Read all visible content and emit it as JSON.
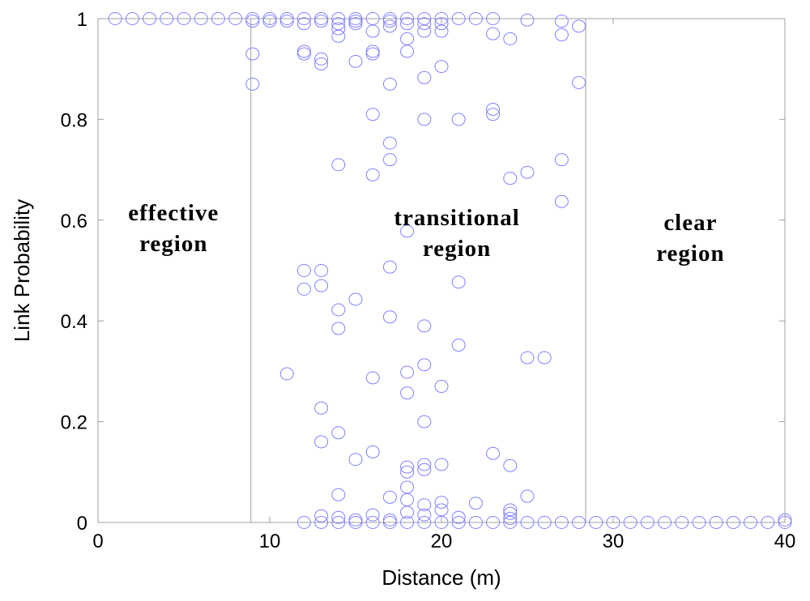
{
  "chart_data": {
    "type": "scatter",
    "xlabel": "Distance (m)",
    "ylabel": "Link Probability",
    "xlim": [
      0,
      40
    ],
    "ylim": [
      0,
      1
    ],
    "xticks": [
      "0",
      "10",
      "20",
      "30",
      "40"
    ],
    "yticks": [
      "0",
      "0.2",
      "0.4",
      "0.6",
      "0.8",
      "1"
    ],
    "region_boundaries": [
      8.9,
      28.4
    ],
    "regions": [
      {
        "lines": [
          "effective",
          "region"
        ],
        "x": 4.4,
        "y": 0.6
      },
      {
        "lines": [
          "transitional",
          "region"
        ],
        "x": 20.9,
        "y": 0.59
      },
      {
        "lines": [
          "clear",
          "region"
        ],
        "x": 34.5,
        "y": 0.58
      }
    ],
    "colors": {
      "marker": "#8080ff",
      "axes": "#a0a0a0",
      "text": "#000000"
    },
    "series": [
      {
        "values": [
          [
            1.0,
            1.0
          ],
          [
            2.0,
            1.0
          ],
          [
            3.0,
            1.0
          ],
          [
            4.0,
            1.0
          ],
          [
            5.0,
            1.0
          ],
          [
            6.0,
            1.0
          ],
          [
            7.0,
            1.0
          ],
          [
            8.0,
            1.0
          ],
          [
            9.0,
            1.0
          ],
          [
            9.0,
            0.995
          ],
          [
            9.0,
            0.93
          ],
          [
            9.0,
            0.87
          ],
          [
            10.0,
            1.0
          ],
          [
            10.0,
            0.995
          ],
          [
            11.0,
            1.0
          ],
          [
            11.0,
            0.995
          ],
          [
            11.0,
            0.295
          ],
          [
            12.0,
            1.0
          ],
          [
            12.0,
            0.99
          ],
          [
            12.0,
            0.935
          ],
          [
            12.0,
            0.93
          ],
          [
            12.0,
            0.5
          ],
          [
            12.0,
            0.463
          ],
          [
            12.0,
            0.0
          ],
          [
            13.0,
            1.0
          ],
          [
            13.0,
            0.995
          ],
          [
            13.0,
            0.92
          ],
          [
            13.0,
            0.91
          ],
          [
            13.0,
            0.5
          ],
          [
            13.0,
            0.47
          ],
          [
            13.0,
            0.227
          ],
          [
            13.0,
            0.16
          ],
          [
            13.0,
            0.013
          ],
          [
            13.0,
            0.0
          ],
          [
            14.0,
            1.0
          ],
          [
            14.0,
            0.99
          ],
          [
            14.0,
            0.98
          ],
          [
            14.0,
            0.965
          ],
          [
            14.0,
            0.71
          ],
          [
            14.0,
            0.422
          ],
          [
            14.0,
            0.385
          ],
          [
            14.0,
            0.178
          ],
          [
            14.0,
            0.055
          ],
          [
            14.0,
            0.01
          ],
          [
            14.0,
            0.0
          ],
          [
            15.0,
            1.0
          ],
          [
            15.0,
            0.995
          ],
          [
            15.0,
            0.99
          ],
          [
            15.0,
            0.915
          ],
          [
            15.0,
            0.443
          ],
          [
            15.0,
            0.125
          ],
          [
            15.0,
            0.005
          ],
          [
            15.0,
            0.0
          ],
          [
            16.0,
            1.0
          ],
          [
            16.0,
            0.975
          ],
          [
            16.0,
            0.935
          ],
          [
            16.0,
            0.93
          ],
          [
            16.0,
            0.81
          ],
          [
            16.0,
            0.69
          ],
          [
            16.0,
            0.287
          ],
          [
            16.0,
            0.14
          ],
          [
            16.0,
            0.015
          ],
          [
            16.0,
            0.0
          ],
          [
            17.0,
            1.0
          ],
          [
            17.0,
            0.995
          ],
          [
            17.0,
            0.985
          ],
          [
            17.0,
            0.87
          ],
          [
            17.0,
            0.753
          ],
          [
            17.0,
            0.72
          ],
          [
            17.0,
            0.507
          ],
          [
            17.0,
            0.408
          ],
          [
            17.0,
            0.05
          ],
          [
            17.0,
            0.005
          ],
          [
            17.0,
            0.0
          ],
          [
            18.0,
            1.0
          ],
          [
            18.0,
            0.99
          ],
          [
            18.0,
            0.96
          ],
          [
            18.0,
            0.935
          ],
          [
            18.0,
            0.578
          ],
          [
            18.0,
            0.298
          ],
          [
            18.0,
            0.257
          ],
          [
            18.0,
            0.11
          ],
          [
            18.0,
            0.1
          ],
          [
            18.0,
            0.07
          ],
          [
            18.0,
            0.045
          ],
          [
            18.0,
            0.02
          ],
          [
            18.0,
            0.0
          ],
          [
            19.0,
            1.0
          ],
          [
            19.0,
            0.99
          ],
          [
            19.0,
            0.975
          ],
          [
            19.0,
            0.883
          ],
          [
            19.0,
            0.8
          ],
          [
            19.0,
            0.39
          ],
          [
            19.0,
            0.313
          ],
          [
            19.0,
            0.2
          ],
          [
            19.0,
            0.115
          ],
          [
            19.0,
            0.105
          ],
          [
            19.0,
            0.035
          ],
          [
            19.0,
            0.015
          ],
          [
            19.0,
            0.0
          ],
          [
            20.0,
            1.0
          ],
          [
            20.0,
            0.99
          ],
          [
            20.0,
            0.975
          ],
          [
            20.0,
            0.905
          ],
          [
            20.0,
            0.27
          ],
          [
            20.0,
            0.115
          ],
          [
            20.0,
            0.04
          ],
          [
            20.0,
            0.025
          ],
          [
            20.0,
            0.0
          ],
          [
            21.0,
            1.0
          ],
          [
            21.0,
            0.8
          ],
          [
            21.0,
            0.477
          ],
          [
            21.0,
            0.352
          ],
          [
            21.0,
            0.01
          ],
          [
            21.0,
            0.0
          ],
          [
            22.0,
            1.0
          ],
          [
            22.0,
            0.038
          ],
          [
            22.0,
            0.0
          ],
          [
            23.0,
            1.0
          ],
          [
            23.0,
            0.97
          ],
          [
            23.0,
            0.82
          ],
          [
            23.0,
            0.81
          ],
          [
            23.0,
            0.137
          ],
          [
            23.0,
            0.0
          ],
          [
            24.0,
            0.96
          ],
          [
            24.0,
            0.683
          ],
          [
            24.0,
            0.113
          ],
          [
            24.0,
            0.025
          ],
          [
            24.0,
            0.018
          ],
          [
            24.0,
            0.008
          ],
          [
            24.0,
            0.0
          ],
          [
            25.0,
            0.997
          ],
          [
            25.0,
            0.695
          ],
          [
            25.0,
            0.327
          ],
          [
            25.0,
            0.052
          ],
          [
            25.0,
            0.0
          ],
          [
            26.0,
            0.327
          ],
          [
            26.0,
            0.0
          ],
          [
            27.0,
            0.995
          ],
          [
            27.0,
            0.968
          ],
          [
            27.0,
            0.72
          ],
          [
            27.0,
            0.637
          ],
          [
            27.0,
            0.0
          ],
          [
            28.0,
            0.985
          ],
          [
            28.0,
            0.873
          ],
          [
            28.0,
            0.0
          ],
          [
            29.0,
            0.0
          ],
          [
            30.0,
            0.0
          ],
          [
            31.0,
            0.0
          ],
          [
            32.0,
            0.0
          ],
          [
            33.0,
            0.0
          ],
          [
            34.0,
            0.0
          ],
          [
            35.0,
            0.0
          ],
          [
            36.0,
            0.0
          ],
          [
            37.0,
            0.0
          ],
          [
            38.0,
            0.0
          ],
          [
            39.0,
            0.0
          ],
          [
            40.0,
            0.005
          ],
          [
            40.0,
            0.0
          ]
        ]
      }
    ]
  }
}
